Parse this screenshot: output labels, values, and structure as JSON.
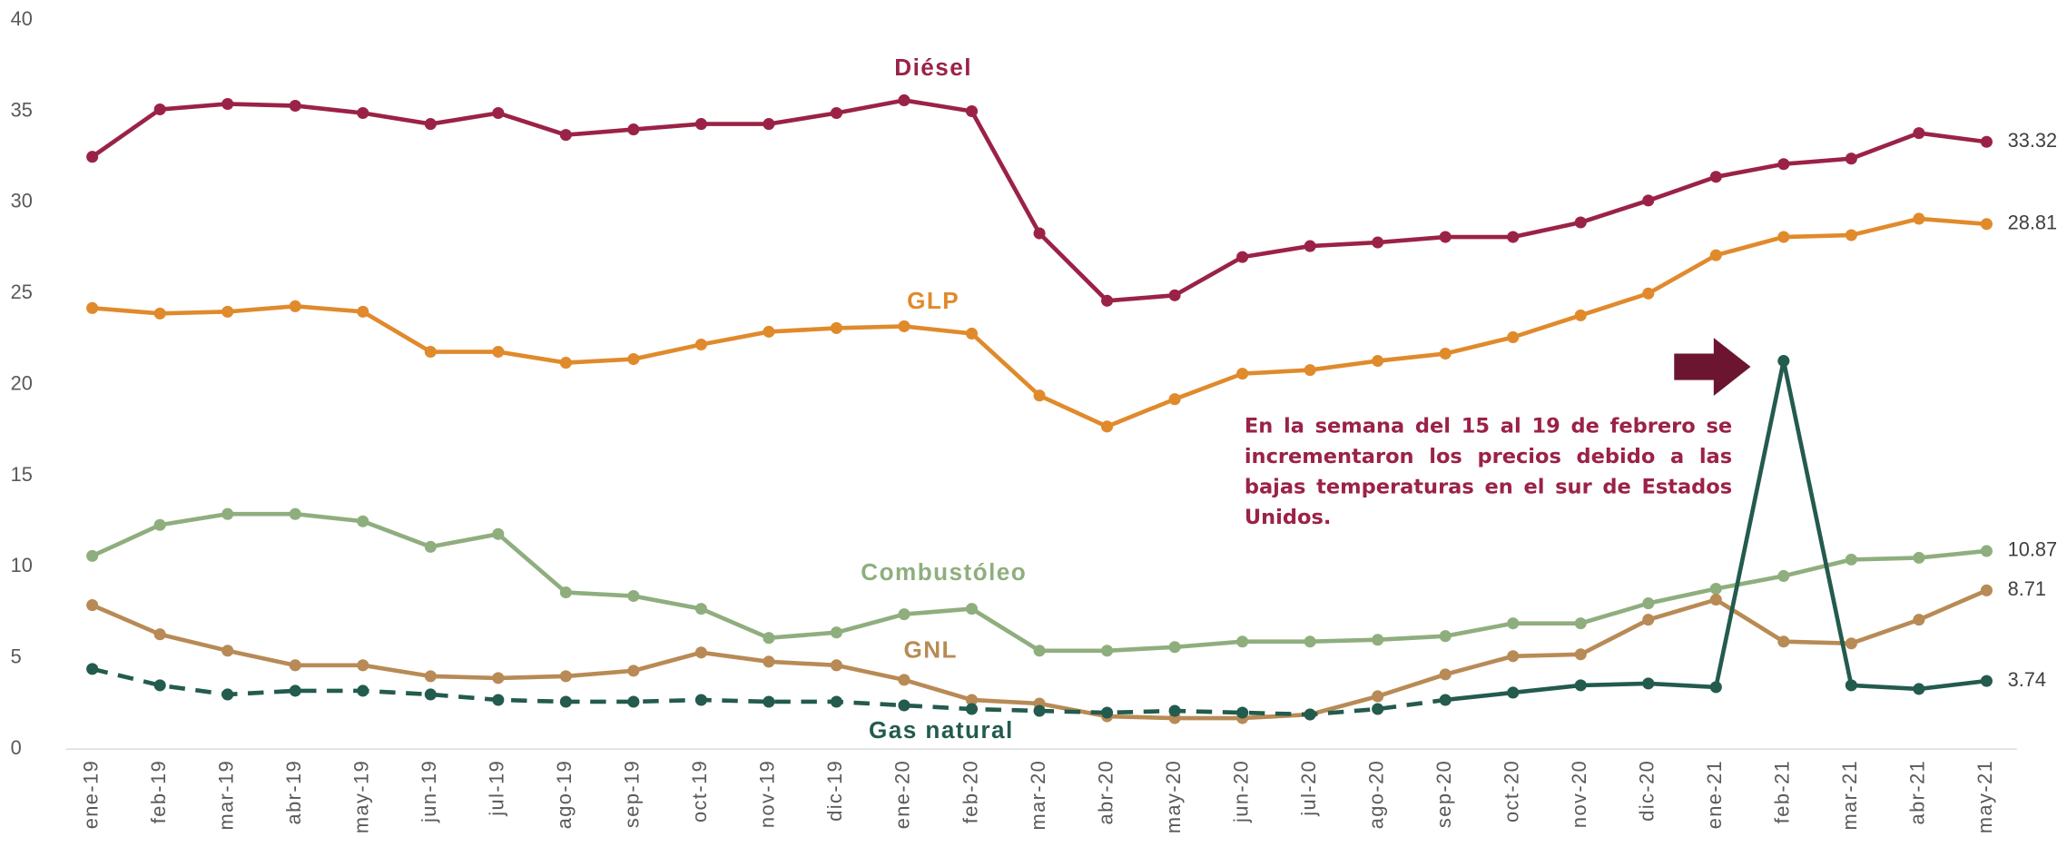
{
  "chart_data": {
    "type": "line",
    "categories": [
      "ene-19",
      "feb-19",
      "mar-19",
      "abr-19",
      "may-19",
      "jun-19",
      "jul-19",
      "ago-19",
      "sep-19",
      "oct-19",
      "nov-19",
      "dic-19",
      "ene-20",
      "feb-20",
      "mar-20",
      "abr-20",
      "may-20",
      "jun-20",
      "jul-20",
      "ago-20",
      "sep-20",
      "oct-20",
      "nov-20",
      "dic-20",
      "ene-21",
      "feb-21",
      "mar-21",
      "abr-21",
      "may-21"
    ],
    "series": [
      {
        "name": "Diésel",
        "color": "#9b2247",
        "values": [
          32.5,
          35.1,
          35.4,
          35.3,
          34.9,
          34.3,
          34.9,
          33.7,
          34.0,
          34.3,
          34.3,
          34.9,
          35.6,
          35.0,
          28.3,
          24.6,
          24.9,
          27.0,
          27.6,
          27.8,
          28.1,
          28.1,
          28.9,
          30.1,
          31.4,
          32.1,
          32.4,
          33.8,
          33.32
        ]
      },
      {
        "name": "GLP",
        "color": "#e08a2c",
        "values": [
          24.2,
          23.9,
          24.0,
          24.3,
          24.0,
          21.8,
          21.8,
          21.2,
          21.4,
          22.2,
          22.9,
          23.1,
          23.2,
          22.8,
          19.4,
          17.7,
          19.2,
          20.6,
          20.8,
          21.3,
          21.7,
          22.6,
          23.8,
          25.0,
          27.1,
          28.1,
          28.2,
          29.1,
          28.81
        ]
      },
      {
        "name": "Combustóleo",
        "color": "#8fae7e",
        "values": [
          10.6,
          12.3,
          12.9,
          12.9,
          12.5,
          11.1,
          11.8,
          8.6,
          8.4,
          7.7,
          6.1,
          6.4,
          7.4,
          7.7,
          5.4,
          5.4,
          5.6,
          5.9,
          5.9,
          6.0,
          6.2,
          6.9,
          6.9,
          8.0,
          8.8,
          9.5,
          10.4,
          10.5,
          10.87
        ]
      },
      {
        "name": "GNL",
        "color": "#b88a55",
        "values": [
          7.9,
          6.3,
          5.4,
          4.6,
          4.6,
          4.0,
          3.9,
          4.0,
          4.3,
          5.3,
          4.8,
          4.6,
          3.8,
          2.7,
          2.5,
          1.8,
          1.7,
          1.7,
          1.9,
          2.9,
          4.1,
          5.1,
          5.2,
          7.1,
          8.2,
          5.9,
          5.8,
          7.1,
          8.71
        ]
      },
      {
        "name": "Gas natural",
        "color": "#235b4e",
        "dashed_until": 20,
        "values": [
          4.4,
          3.5,
          3.0,
          3.2,
          3.2,
          3.0,
          2.7,
          2.6,
          2.6,
          2.7,
          2.6,
          2.6,
          2.4,
          2.2,
          2.1,
          2.0,
          2.1,
          2.0,
          1.9,
          2.2,
          2.7,
          3.1,
          3.5,
          3.6,
          3.4,
          21.3,
          3.5,
          3.3,
          3.74
        ]
      }
    ],
    "ylim": [
      0,
      40
    ],
    "yticks": [
      0,
      5,
      10,
      15,
      20,
      25,
      30,
      35,
      40
    ],
    "annotation": "En la semana del 15 al 19 de febrero se incrementaron los precios debido a las bajas temperaturas en el sur de Estados Unidos.",
    "annotation_color": "#9b2247"
  }
}
